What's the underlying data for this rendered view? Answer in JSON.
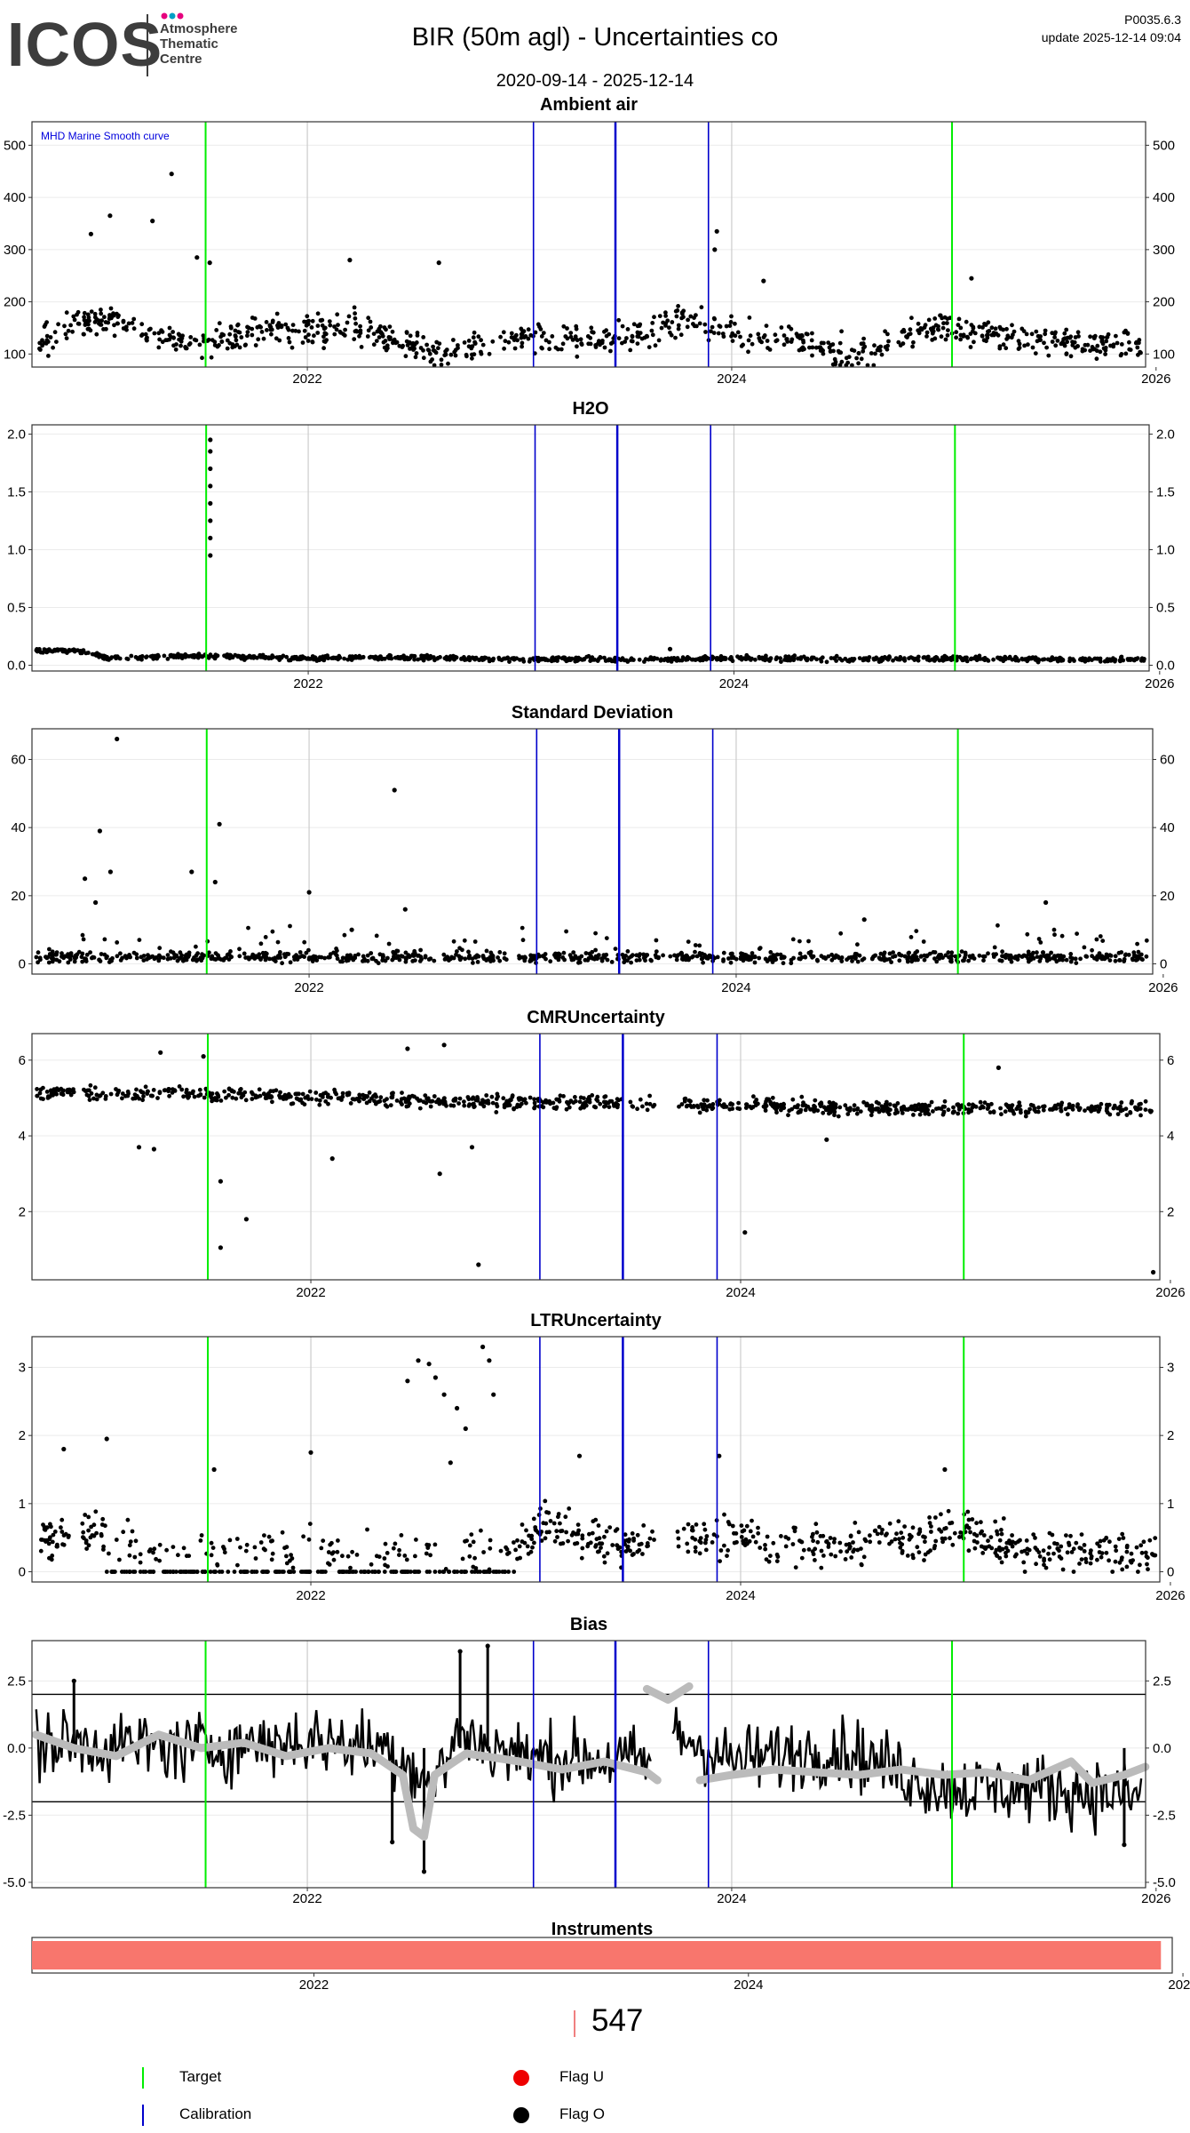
{
  "header": {
    "logo_text": "ICOS",
    "logo_subtitle": [
      "Atmosphere",
      "Thematic",
      "Centre"
    ],
    "title": "BIR  (50m agl) - Uncertainties co",
    "date_range": "2020-09-14 - 2025-12-14",
    "version": "P0035.6.3",
    "update": "update  2025-12-14 09:04"
  },
  "colors": {
    "target": "#00ee00",
    "calibration": "#0000cc",
    "flag_u": "#ee0000",
    "flag_o": "#000000",
    "bias_smooth": "#bbbbbb",
    "instrument_bar": "#f8766d",
    "annotation": "#0000dd"
  },
  "chart_data": {
    "type": "scatter",
    "x_range": [
      "2020-09-14",
      "2025-12-14"
    ],
    "x_ticks": [
      "2022",
      "2024",
      "2026"
    ],
    "target_dates": [
      "2021-07-10",
      "2025-01-15"
    ],
    "calibration_dates": [
      "2023-01-25",
      "2023-06-15",
      "2023-11-22"
    ],
    "panels": [
      {
        "title": "Ambient air",
        "annotation": "MHD Marine Smooth curve",
        "ylim": [
          75,
          545
        ],
        "yticks": [
          100,
          200,
          300,
          400,
          500
        ],
        "baseline": [
          [
            2020.72,
            120
          ],
          [
            2020.9,
            150
          ],
          [
            2021.05,
            170
          ],
          [
            2021.2,
            150
          ],
          [
            2021.35,
            135
          ],
          [
            2021.5,
            110
          ],
          [
            2021.7,
            140
          ],
          [
            2021.9,
            150
          ],
          [
            2022.1,
            145
          ],
          [
            2022.3,
            150
          ],
          [
            2022.5,
            110
          ],
          [
            2022.65,
            100
          ],
          [
            2022.8,
            120
          ],
          [
            2023.0,
            125
          ],
          [
            2023.2,
            130
          ],
          [
            2023.4,
            125
          ],
          [
            2023.6,
            140
          ],
          [
            2023.8,
            170
          ],
          [
            2023.95,
            145
          ],
          [
            2024.1,
            140
          ],
          [
            2024.3,
            130
          ],
          [
            2024.5,
            105
          ],
          [
            2024.65,
            100
          ],
          [
            2024.8,
            140
          ],
          [
            2025.0,
            150
          ],
          [
            2025.2,
            140
          ],
          [
            2025.4,
            130
          ],
          [
            2025.6,
            120
          ],
          [
            2025.8,
            120
          ],
          [
            2025.95,
            115
          ]
        ],
        "spread": 28,
        "outliers": [
          [
            2020.98,
            330
          ],
          [
            2021.07,
            365
          ],
          [
            2021.36,
            445
          ],
          [
            2021.27,
            355
          ],
          [
            2021.48,
            285
          ],
          [
            2021.54,
            275
          ],
          [
            2022.2,
            280
          ],
          [
            2022.62,
            275
          ],
          [
            2023.93,
            335
          ],
          [
            2023.92,
            300
          ],
          [
            2024.15,
            240
          ],
          [
            2025.13,
            245
          ]
        ]
      },
      {
        "title": "H2O",
        "ylim": [
          -0.05,
          2.08
        ],
        "yticks": [
          0.0,
          0.5,
          1.0,
          1.5,
          2.0
        ],
        "baseline": [
          [
            2020.72,
            0.13
          ],
          [
            2020.95,
            0.12
          ],
          [
            2021.05,
            0.06
          ],
          [
            2021.5,
            0.08
          ],
          [
            2022.0,
            0.06
          ],
          [
            2022.5,
            0.07
          ],
          [
            2023.0,
            0.05
          ],
          [
            2023.5,
            0.05
          ],
          [
            2024.0,
            0.06
          ],
          [
            2024.5,
            0.05
          ],
          [
            2025.0,
            0.06
          ],
          [
            2025.5,
            0.05
          ],
          [
            2025.95,
            0.05
          ]
        ],
        "spread": 0.02,
        "outliers": [
          [
            2021.54,
            1.95
          ],
          [
            2021.54,
            1.85
          ],
          [
            2021.54,
            1.7
          ],
          [
            2021.54,
            1.55
          ],
          [
            2021.54,
            1.4
          ],
          [
            2021.54,
            1.25
          ],
          [
            2021.54,
            1.1
          ],
          [
            2021.54,
            0.95
          ],
          [
            2023.7,
            0.14
          ]
        ]
      },
      {
        "title": "Standard Deviation",
        "ylim": [
          -3,
          69
        ],
        "yticks": [
          0,
          20,
          40,
          60
        ],
        "baseline": [
          [
            2020.72,
            2
          ],
          [
            2025.95,
            2
          ]
        ],
        "spread": 1.5,
        "outliers": [
          [
            2021.1,
            66
          ],
          [
            2021.02,
            39
          ],
          [
            2021.07,
            27
          ],
          [
            2021.58,
            41
          ],
          [
            2022.4,
            51
          ],
          [
            2020.95,
            25
          ],
          [
            2021.45,
            27
          ],
          [
            2021.0,
            18
          ],
          [
            2021.56,
            24
          ],
          [
            2022.0,
            21
          ],
          [
            2022.45,
            16
          ],
          [
            2025.45,
            18
          ],
          [
            2024.6,
            13
          ],
          [
            2022.2,
            10
          ]
        ]
      },
      {
        "title": "CMRUncertainty",
        "ylim": [
          0.2,
          6.7
        ],
        "yticks": [
          2,
          4,
          6
        ],
        "baseline": [
          [
            2020.72,
            5.15
          ],
          [
            2021.5,
            5.1
          ],
          [
            2022.5,
            4.95
          ],
          [
            2023.5,
            4.85
          ],
          [
            2024.5,
            4.75
          ],
          [
            2025.95,
            4.7
          ]
        ],
        "spread": 0.18,
        "outliers": [
          [
            2021.5,
            6.1
          ],
          [
            2021.3,
            6.2
          ],
          [
            2022.45,
            6.3
          ],
          [
            2022.62,
            6.4
          ],
          [
            2025.2,
            5.8
          ],
          [
            2021.2,
            3.7
          ],
          [
            2021.27,
            3.65
          ],
          [
            2021.58,
            2.8
          ],
          [
            2021.7,
            1.8
          ],
          [
            2021.58,
            1.05
          ],
          [
            2022.1,
            3.4
          ],
          [
            2022.6,
            3.0
          ],
          [
            2022.75,
            3.7
          ],
          [
            2022.78,
            0.6
          ],
          [
            2024.02,
            1.45
          ],
          [
            2025.92,
            0.4
          ],
          [
            2024.4,
            3.9
          ]
        ]
      },
      {
        "title": "LTRUncertainty",
        "ylim": [
          -0.15,
          3.45
        ],
        "yticks": [
          0,
          1,
          2,
          3
        ],
        "baseline": [
          [
            2020.72,
            0.5
          ],
          [
            2021.0,
            0.6
          ],
          [
            2021.2,
            0.3
          ],
          [
            2022.0,
            0.3
          ],
          [
            2022.9,
            0.3
          ],
          [
            2023.1,
            0.7
          ],
          [
            2023.4,
            0.4
          ],
          [
            2024.0,
            0.5
          ],
          [
            2024.5,
            0.35
          ],
          [
            2025.0,
            0.6
          ],
          [
            2025.4,
            0.3
          ],
          [
            2025.95,
            0.25
          ]
        ],
        "spread": 0.3,
        "outliers": [
          [
            2020.85,
            1.8
          ],
          [
            2021.05,
            1.95
          ],
          [
            2021.55,
            1.5
          ],
          [
            2022.0,
            1.75
          ],
          [
            2022.45,
            2.8
          ],
          [
            2022.5,
            3.1
          ],
          [
            2022.55,
            3.05
          ],
          [
            2022.58,
            2.85
          ],
          [
            2022.62,
            2.6
          ],
          [
            2022.68,
            2.4
          ],
          [
            2022.72,
            2.1
          ],
          [
            2022.65,
            1.6
          ],
          [
            2022.8,
            3.3
          ],
          [
            2022.83,
            3.1
          ],
          [
            2022.85,
            2.6
          ],
          [
            2023.25,
            1.7
          ],
          [
            2023.9,
            1.7
          ],
          [
            2024.95,
            1.5
          ]
        ],
        "floor_range": [
          2021.05,
          2022.95
        ]
      },
      {
        "title": "Bias",
        "ylim": [
          -5.2,
          4.0
        ],
        "yticks": [
          -5.0,
          -2.5,
          0.0,
          2.5
        ],
        "hlines": [
          2,
          -2
        ],
        "baseline": [
          [
            2020.72,
            0.2
          ],
          [
            2021.5,
            0.0
          ],
          [
            2022.0,
            0.3
          ],
          [
            2022.4,
            0.0
          ],
          [
            2022.6,
            -1.5
          ],
          [
            2022.7,
            0.5
          ],
          [
            2023.0,
            -0.3
          ],
          [
            2023.6,
            -0.5
          ],
          [
            2023.75,
            0.5
          ],
          [
            2024.0,
            -0.5
          ],
          [
            2024.5,
            0.0
          ],
          [
            2025.0,
            -1.5
          ],
          [
            2025.5,
            -1.5
          ],
          [
            2025.95,
            -1.8
          ]
        ],
        "spread": 1.3,
        "outliers": [
          [
            2022.4,
            -3.5
          ],
          [
            2022.55,
            -4.6
          ],
          [
            2022.72,
            3.6
          ],
          [
            2022.85,
            3.8
          ],
          [
            2020.9,
            2.5
          ],
          [
            2025.85,
            -3.6
          ]
        ],
        "smooth": [
          [
            2020.72,
            0.5
          ],
          [
            2020.9,
            0.0
          ],
          [
            2021.1,
            -0.3
          ],
          [
            2021.3,
            0.5
          ],
          [
            2021.5,
            0.0
          ],
          [
            2021.7,
            0.2
          ],
          [
            2021.9,
            -0.3
          ],
          [
            2022.1,
            0.0
          ],
          [
            2022.3,
            -0.2
          ],
          [
            2022.45,
            -1.0
          ],
          [
            2022.5,
            -3.0
          ],
          [
            2022.55,
            -3.3
          ],
          [
            2022.6,
            -1.0
          ],
          [
            2022.75,
            -0.2
          ],
          [
            2023.0,
            -0.5
          ],
          [
            2023.2,
            -0.8
          ],
          [
            2023.4,
            -0.5
          ],
          [
            2023.6,
            -0.9
          ],
          [
            2023.65,
            -1.2
          ]
        ],
        "smooth2": [
          [
            2023.6,
            2.2
          ],
          [
            2023.7,
            1.8
          ],
          [
            2023.8,
            2.3
          ]
        ],
        "smooth3": [
          [
            2023.85,
            -1.2
          ],
          [
            2024.0,
            -1.0
          ],
          [
            2024.2,
            -0.8
          ],
          [
            2024.4,
            -0.9
          ],
          [
            2024.6,
            -1.0
          ],
          [
            2024.8,
            -0.8
          ],
          [
            2025.0,
            -1.0
          ],
          [
            2025.2,
            -0.9
          ],
          [
            2025.4,
            -1.2
          ],
          [
            2025.6,
            -0.5
          ],
          [
            2025.7,
            -1.3
          ],
          [
            2025.85,
            -1.0
          ],
          [
            2025.95,
            -0.7
          ]
        ]
      }
    ],
    "instruments": {
      "title": "Instruments",
      "start": "2020-09-14",
      "end": "2025-11-25"
    },
    "instrument_id": "547"
  },
  "legend": {
    "target": "Target",
    "calibration": "Calibration",
    "flag_u": "Flag U",
    "flag_o": "Flag O"
  }
}
